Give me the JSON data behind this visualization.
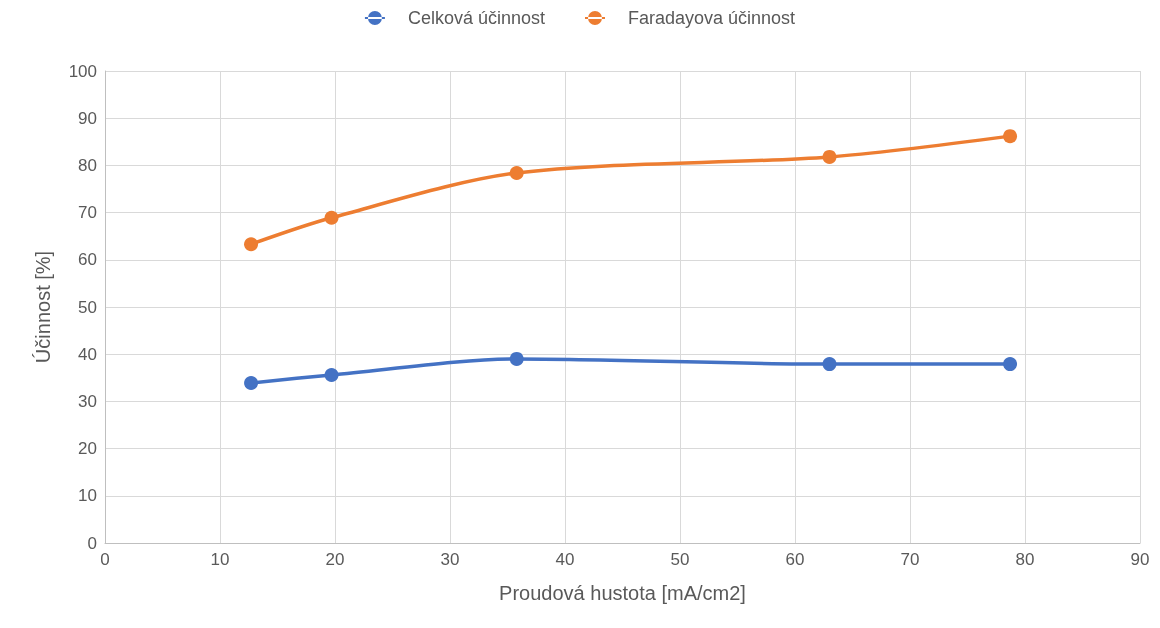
{
  "chart_data": {
    "type": "line",
    "xlabel": "Proudová hustota [mA/cm2]",
    "ylabel": "Účinnost [%]",
    "x": [
      12.7,
      19.7,
      35.8,
      63.0,
      78.7
    ],
    "series": [
      {
        "name": "Celková účinnost",
        "color": "#4472c4",
        "values": [
          33.9,
          35.6,
          39.0,
          37.9,
          37.9
        ]
      },
      {
        "name": "Faradayova účinnost",
        "color": "#ed7d31",
        "values": [
          63.3,
          68.9,
          78.4,
          81.8,
          86.2
        ]
      }
    ],
    "xlim": [
      0,
      90
    ],
    "xticks": [
      0,
      10,
      20,
      30,
      40,
      50,
      60,
      70,
      80,
      90
    ],
    "ylim": [
      0,
      100
    ],
    "yticks": [
      0,
      10,
      20,
      30,
      40,
      50,
      60,
      70,
      80,
      90,
      100
    ],
    "grid": true,
    "legend": "top",
    "marker": "circle",
    "line_style": "solid"
  }
}
